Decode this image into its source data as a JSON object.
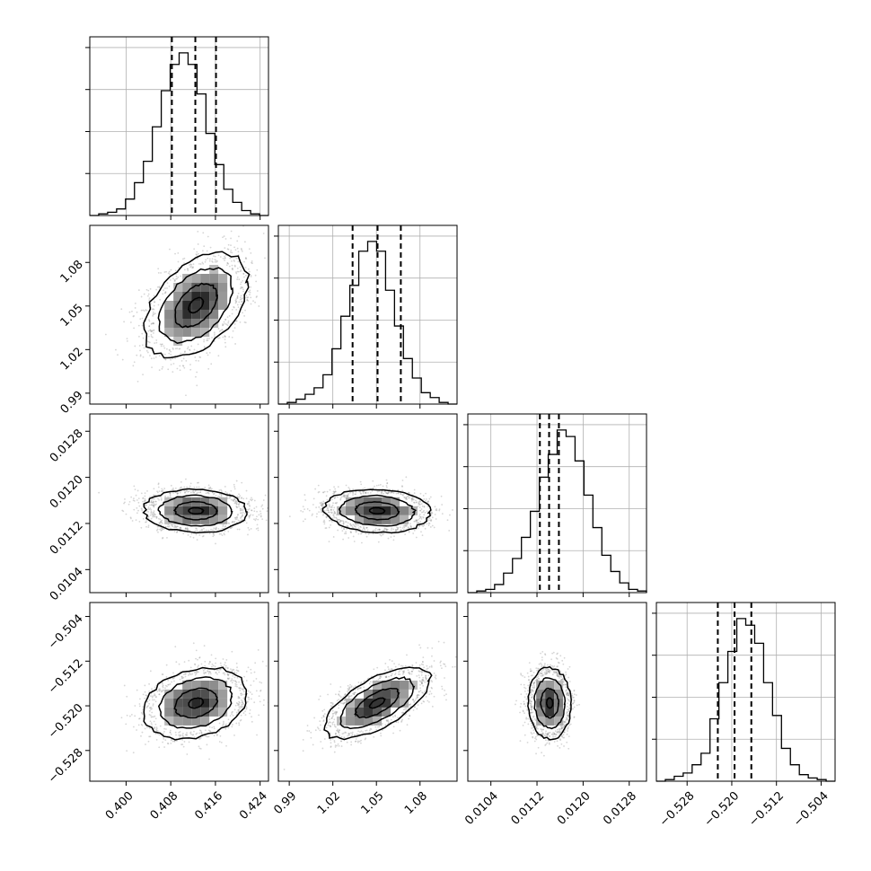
{
  "chart_data": {
    "type": "corner",
    "parameters": [
      {
        "range": [
          0.3935,
          0.4255
        ],
        "ticks": [
          "0.400",
          "0.408",
          "0.416",
          "0.424"
        ],
        "tick_values": [
          0.4,
          0.408,
          0.416,
          0.424
        ],
        "hist_edges_start": 0.3935,
        "hist_bin_width": 0.0016,
        "hist_counts": [
          0,
          1,
          2,
          4,
          10,
          20,
          33,
          54,
          76,
          92,
          99,
          92,
          74,
          50,
          31,
          16,
          8,
          3,
          1,
          0
        ],
        "quantiles": [
          0.4082,
          0.4124,
          0.4161
        ],
        "mean": 0.4125,
        "sd": 0.0042
      },
      {
        "range": [
          0.9825,
          1.1055
        ],
        "ticks": [
          "0.99",
          "1.02",
          "1.05",
          "1.08"
        ],
        "tick_values": [
          0.99,
          1.02,
          1.05,
          1.08
        ],
        "hist_edges_start": 0.9825,
        "hist_bin_width": 0.00615,
        "hist_counts": [
          0,
          1,
          3,
          6,
          10,
          18,
          34,
          54,
          73,
          94,
          100,
          94,
          70,
          48,
          28,
          16,
          7,
          4,
          1,
          0
        ],
        "quantiles": [
          1.0336,
          1.0508,
          1.0668
        ],
        "mean": 1.0505,
        "sd": 0.0165
      },
      {
        "range": [
          0.01,
          0.0131
        ],
        "ticks": [
          "0.0104",
          "0.0112",
          "0.0120",
          "0.0128"
        ],
        "tick_values": [
          0.0104,
          0.0112,
          0.012,
          0.0128
        ],
        "hist_edges_start": 0.01,
        "hist_bin_width": 0.000155,
        "hist_counts": [
          0,
          1,
          2,
          5,
          12,
          21,
          34,
          50,
          71,
          85,
          100,
          96,
          81,
          60,
          40,
          23,
          13,
          6,
          2,
          1
        ],
        "quantiles": [
          0.01125,
          0.01141,
          0.01158
        ],
        "mean": 0.01142,
        "sd": 0.00017
      },
      {
        "range": [
          -0.5335,
          -0.5015
        ],
        "ticks": [
          "−0.528",
          "−0.520",
          "−0.512",
          "−0.504"
        ],
        "tick_values": [
          -0.528,
          -0.52,
          -0.512,
          -0.504
        ],
        "hist_edges_start": -0.5335,
        "hist_bin_width": 0.0016,
        "hist_counts": [
          0,
          1,
          3,
          5,
          10,
          17,
          38,
          60,
          79,
          99,
          95,
          84,
          60,
          40,
          20,
          10,
          4,
          2,
          1,
          0
        ],
        "quantiles": [
          -0.5225,
          -0.5195,
          -0.5165
        ],
        "mean": -0.5195,
        "sd": 0.0029
      }
    ],
    "correlations": {
      "1-0": 0.45,
      "2-0": -0.05,
      "2-1": -0.1,
      "3-0": 0.25,
      "3-1": 0.65,
      "3-2": -0.05
    },
    "contour_levels_sigma": [
      0.5,
      1.0,
      1.5,
      2.0
    ],
    "xlabels_visible": true,
    "grid": true,
    "title": "",
    "xlabel": "",
    "ylabel": ""
  }
}
